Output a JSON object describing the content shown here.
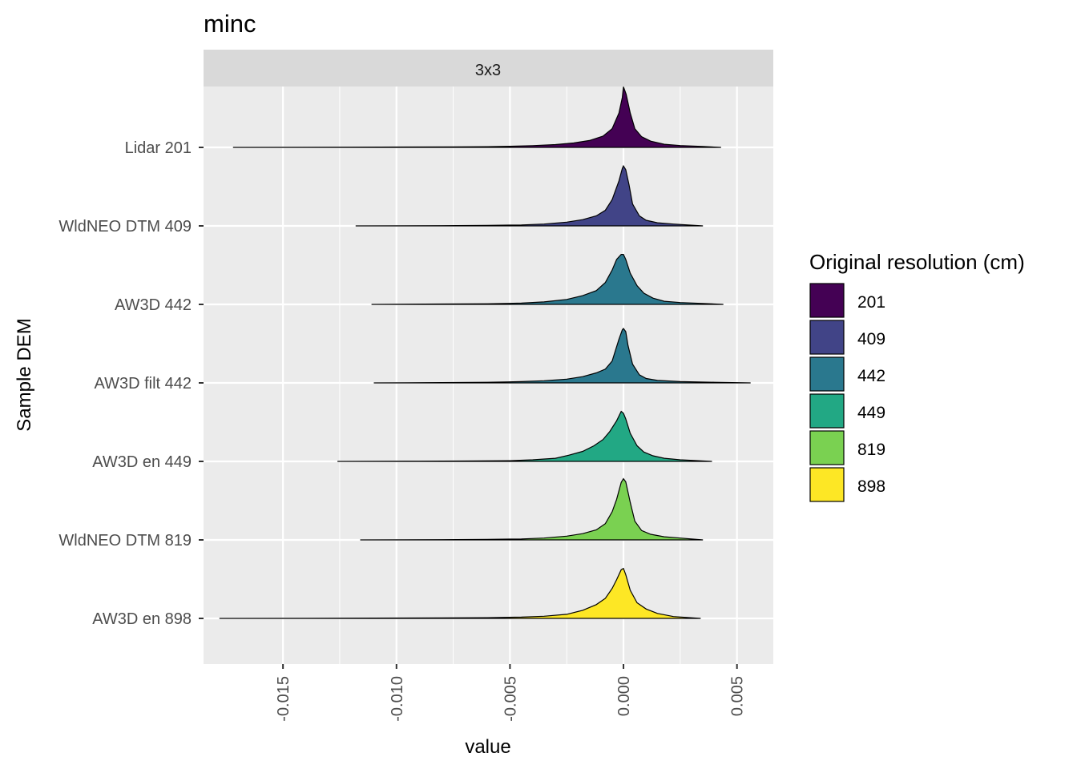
{
  "chart_data": {
    "type": "ridgeline",
    "title": "minc",
    "facet_label": "3x3",
    "xlabel": "value",
    "ylabel": "Sample DEM",
    "xlim": [
      -0.0185,
      0.0066
    ],
    "x_ticks": [
      -0.015,
      -0.01,
      -0.005,
      0.0,
      0.005
    ],
    "x_tick_labels": [
      "-0.015",
      "-0.010",
      "-0.005",
      "0.000",
      "0.005"
    ],
    "grid": true,
    "legend": {
      "title": "Original resolution (cm)",
      "position": "right",
      "entries": [
        {
          "label": "201",
          "color": "#440154"
        },
        {
          "label": "409",
          "color": "#414487"
        },
        {
          "label": "442",
          "color": "#2A788E"
        },
        {
          "label": "449",
          "color": "#22A884"
        },
        {
          "label": "819",
          "color": "#7AD151"
        },
        {
          "label": "898",
          "color": "#FDE725"
        }
      ]
    },
    "series": [
      {
        "name": "Lidar 201",
        "resolution": "201",
        "color": "#440154",
        "min": -0.0172,
        "max": 0.0043,
        "profile": [
          [
            -0.0172,
            0.0
          ],
          [
            -0.012,
            0.004
          ],
          [
            -0.0095,
            0.006
          ],
          [
            -0.0075,
            0.008
          ],
          [
            -0.006,
            0.012
          ],
          [
            -0.005,
            0.018
          ],
          [
            -0.004,
            0.028
          ],
          [
            -0.003,
            0.045
          ],
          [
            -0.0022,
            0.07
          ],
          [
            -0.0015,
            0.11
          ],
          [
            -0.0009,
            0.18
          ],
          [
            -0.0005,
            0.3
          ],
          [
            -0.0002,
            0.55
          ],
          [
            -5e-05,
            0.8
          ],
          [
            0.0,
            0.97
          ],
          [
            0.00012,
            0.85
          ],
          [
            0.0003,
            0.55
          ],
          [
            0.0005,
            0.3
          ],
          [
            0.0008,
            0.17
          ],
          [
            0.0012,
            0.1
          ],
          [
            0.0018,
            0.05
          ],
          [
            0.0025,
            0.03
          ],
          [
            0.0035,
            0.015
          ],
          [
            0.0043,
            0.0
          ]
        ]
      },
      {
        "name": "WldNEO DTM 409",
        "resolution": "409",
        "color": "#414487",
        "min": -0.0118,
        "max": 0.0035,
        "profile": [
          [
            -0.0118,
            0.0
          ],
          [
            -0.008,
            0.004
          ],
          [
            -0.006,
            0.008
          ],
          [
            -0.0045,
            0.015
          ],
          [
            -0.0035,
            0.03
          ],
          [
            -0.0025,
            0.06
          ],
          [
            -0.0018,
            0.1
          ],
          [
            -0.0012,
            0.16
          ],
          [
            -0.0008,
            0.25
          ],
          [
            -0.0005,
            0.42
          ],
          [
            -0.0002,
            0.72
          ],
          [
            -5e-05,
            0.92
          ],
          [
            0.0,
            0.96
          ],
          [
            0.0001,
            0.9
          ],
          [
            0.00025,
            0.65
          ],
          [
            0.0004,
            0.35
          ],
          [
            0.0007,
            0.16
          ],
          [
            0.001,
            0.09
          ],
          [
            0.0015,
            0.05
          ],
          [
            0.0022,
            0.03
          ],
          [
            0.0035,
            0.0
          ]
        ]
      },
      {
        "name": "AW3D 442",
        "resolution": "442",
        "color": "#2A788E",
        "min": -0.0111,
        "max": 0.0044,
        "profile": [
          [
            -0.0111,
            0.0
          ],
          [
            -0.008,
            0.006
          ],
          [
            -0.006,
            0.01
          ],
          [
            -0.0045,
            0.02
          ],
          [
            -0.0035,
            0.04
          ],
          [
            -0.0025,
            0.08
          ],
          [
            -0.0018,
            0.14
          ],
          [
            -0.0012,
            0.22
          ],
          [
            -0.0008,
            0.35
          ],
          [
            -0.0005,
            0.55
          ],
          [
            -0.0003,
            0.72
          ],
          [
            -0.0001,
            0.8
          ],
          [
            0.0,
            0.8
          ],
          [
            0.0001,
            0.72
          ],
          [
            0.0003,
            0.5
          ],
          [
            0.0006,
            0.3
          ],
          [
            0.0009,
            0.18
          ],
          [
            0.0013,
            0.1
          ],
          [
            0.0018,
            0.05
          ],
          [
            0.0025,
            0.03
          ],
          [
            0.0035,
            0.015
          ],
          [
            0.0044,
            0.0
          ]
        ]
      },
      {
        "name": "AW3D filt 442",
        "resolution": "442",
        "color": "#2A788E",
        "min": -0.011,
        "max": 0.0056,
        "profile": [
          [
            -0.011,
            0.0
          ],
          [
            -0.008,
            0.005
          ],
          [
            -0.006,
            0.01
          ],
          [
            -0.0045,
            0.02
          ],
          [
            -0.0035,
            0.035
          ],
          [
            -0.0025,
            0.06
          ],
          [
            -0.0018,
            0.1
          ],
          [
            -0.0012,
            0.16
          ],
          [
            -0.0008,
            0.22
          ],
          [
            -0.0005,
            0.35
          ],
          [
            -0.0002,
            0.7
          ],
          [
            -5e-05,
            0.85
          ],
          [
            0.0,
            0.87
          ],
          [
            0.0001,
            0.82
          ],
          [
            0.0002,
            0.6
          ],
          [
            0.0004,
            0.3
          ],
          [
            0.0007,
            0.13
          ],
          [
            0.001,
            0.07
          ],
          [
            0.0015,
            0.04
          ],
          [
            0.0025,
            0.02
          ],
          [
            0.004,
            0.01
          ],
          [
            0.0056,
            0.0
          ]
        ]
      },
      {
        "name": "AW3D en 449",
        "resolution": "449",
        "color": "#22A884",
        "min": -0.0126,
        "max": 0.0039,
        "profile": [
          [
            -0.0126,
            0.0
          ],
          [
            -0.009,
            0.004
          ],
          [
            -0.007,
            0.006
          ],
          [
            -0.005,
            0.012
          ],
          [
            -0.004,
            0.025
          ],
          [
            -0.003,
            0.05
          ],
          [
            -0.0024,
            0.1
          ],
          [
            -0.0018,
            0.16
          ],
          [
            -0.0013,
            0.25
          ],
          [
            -0.0009,
            0.35
          ],
          [
            -0.0006,
            0.48
          ],
          [
            -0.0003,
            0.65
          ],
          [
            -0.0001,
            0.8
          ],
          [
            0.0,
            0.77
          ],
          [
            0.0001,
            0.68
          ],
          [
            0.0003,
            0.45
          ],
          [
            0.0006,
            0.25
          ],
          [
            0.0009,
            0.15
          ],
          [
            0.0013,
            0.09
          ],
          [
            0.0018,
            0.05
          ],
          [
            0.0025,
            0.025
          ],
          [
            0.0039,
            0.0
          ]
        ]
      },
      {
        "name": "WldNEO DTM 819",
        "resolution": "819",
        "color": "#7AD151",
        "min": -0.0116,
        "max": 0.0035,
        "profile": [
          [
            -0.0116,
            0.0
          ],
          [
            -0.008,
            0.004
          ],
          [
            -0.006,
            0.008
          ],
          [
            -0.0045,
            0.015
          ],
          [
            -0.0035,
            0.03
          ],
          [
            -0.0025,
            0.06
          ],
          [
            -0.0018,
            0.1
          ],
          [
            -0.0012,
            0.16
          ],
          [
            -0.0008,
            0.26
          ],
          [
            -0.0005,
            0.45
          ],
          [
            -0.0003,
            0.65
          ],
          [
            -0.0001,
            0.92
          ],
          [
            0.0,
            0.98
          ],
          [
            0.0001,
            0.93
          ],
          [
            0.0003,
            0.6
          ],
          [
            0.0005,
            0.3
          ],
          [
            0.0008,
            0.15
          ],
          [
            0.0012,
            0.09
          ],
          [
            0.0018,
            0.05
          ],
          [
            0.0025,
            0.03
          ],
          [
            0.0035,
            0.0
          ]
        ]
      },
      {
        "name": "AW3D en 898",
        "resolution": "898",
        "color": "#FDE725",
        "min": -0.0178,
        "max": 0.0034,
        "profile": [
          [
            -0.0178,
            0.0
          ],
          [
            -0.014,
            0.003
          ],
          [
            -0.011,
            0.005
          ],
          [
            -0.008,
            0.008
          ],
          [
            -0.006,
            0.012
          ],
          [
            -0.0045,
            0.02
          ],
          [
            -0.0035,
            0.035
          ],
          [
            -0.0025,
            0.065
          ],
          [
            -0.0018,
            0.13
          ],
          [
            -0.0012,
            0.22
          ],
          [
            -0.0008,
            0.32
          ],
          [
            -0.0005,
            0.48
          ],
          [
            -0.0003,
            0.62
          ],
          [
            -0.0001,
            0.78
          ],
          [
            0.0,
            0.8
          ],
          [
            0.0001,
            0.7
          ],
          [
            0.0003,
            0.45
          ],
          [
            0.0006,
            0.25
          ],
          [
            0.001,
            0.15
          ],
          [
            0.0015,
            0.08
          ],
          [
            0.0022,
            0.03
          ],
          [
            0.0034,
            0.0
          ]
        ]
      }
    ]
  }
}
